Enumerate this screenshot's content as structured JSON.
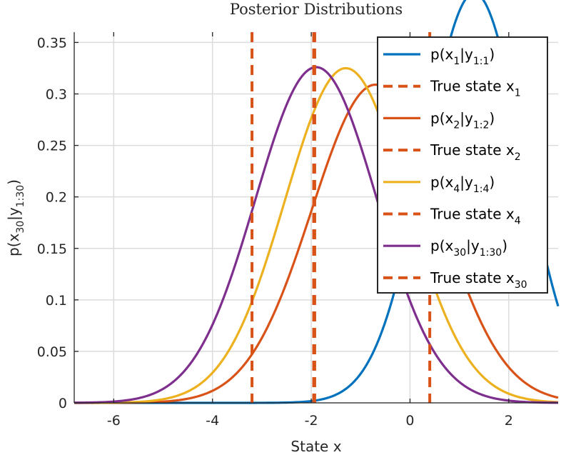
{
  "chart_data": {
    "type": "line",
    "title": "Posterior Distributions",
    "xlabel": "State x",
    "ylabel": {
      "base": "p(x",
      "sub1": "30",
      "mid": "|y",
      "sub2": "1:30",
      "end": ")"
    },
    "xlim": [
      -6.8,
      3.0
    ],
    "ylim": [
      0,
      0.36
    ],
    "x_ticks": [
      -6,
      -4,
      -2,
      0,
      2
    ],
    "x_tick_labels": [
      "-6",
      "-4",
      "-2",
      "0",
      "2"
    ],
    "y_ticks": [
      0,
      0.05,
      0.1,
      0.15,
      0.2,
      0.25,
      0.3,
      0.35
    ],
    "y_tick_labels": [
      "0",
      "0.05",
      "0.1",
      "0.15",
      "0.2",
      "0.25",
      "0.3",
      "0.35"
    ],
    "grid": true,
    "legend_position": "top-right",
    "series": [
      {
        "kind": "density",
        "mean": 1.3,
        "std": 1.0,
        "peak": 0.398,
        "color": "#0072BD",
        "legend": {
          "base": "p(x",
          "sub1": "1",
          "mid": "|y",
          "sub2": "1:1",
          "end": ")"
        }
      },
      {
        "kind": "vline",
        "x": -1.95,
        "color": "#D95319",
        "legend": {
          "base": "True state x",
          "sub1": "1",
          "mid": "",
          "sub2": "",
          "end": ""
        }
      },
      {
        "kind": "density",
        "mean": -0.7,
        "std": 1.29,
        "peak": 0.309,
        "color": "#D95319",
        "legend": {
          "base": "p(x",
          "sub1": "2",
          "mid": "|y",
          "sub2": "1:2",
          "end": ")"
        }
      },
      {
        "kind": "vline",
        "x": -3.2,
        "color": "#D95319",
        "legend": {
          "base": "True state x",
          "sub1": "2",
          "mid": "",
          "sub2": "",
          "end": ""
        }
      },
      {
        "kind": "density",
        "mean": -1.3,
        "std": 1.23,
        "peak": 0.325,
        "color": "#EDB120",
        "legend": {
          "base": "p(x",
          "sub1": "4",
          "mid": "|y",
          "sub2": "1:4",
          "end": ")"
        }
      },
      {
        "kind": "vline",
        "x": 0.4,
        "color": "#D95319",
        "legend": {
          "base": "True state x",
          "sub1": "4",
          "mid": "",
          "sub2": "",
          "end": ""
        }
      },
      {
        "kind": "density",
        "mean": -1.9,
        "std": 1.23,
        "peak": 0.326,
        "color": "#7E2F8E",
        "legend": {
          "base": "p(x",
          "sub1": "30",
          "mid": "|y",
          "sub2": "1:30",
          "end": ")"
        }
      },
      {
        "kind": "vline",
        "x": -1.93,
        "color": "#D95319",
        "legend": {
          "base": "True state x",
          "sub1": "30",
          "mid": "",
          "sub2": "",
          "end": ""
        }
      }
    ]
  }
}
